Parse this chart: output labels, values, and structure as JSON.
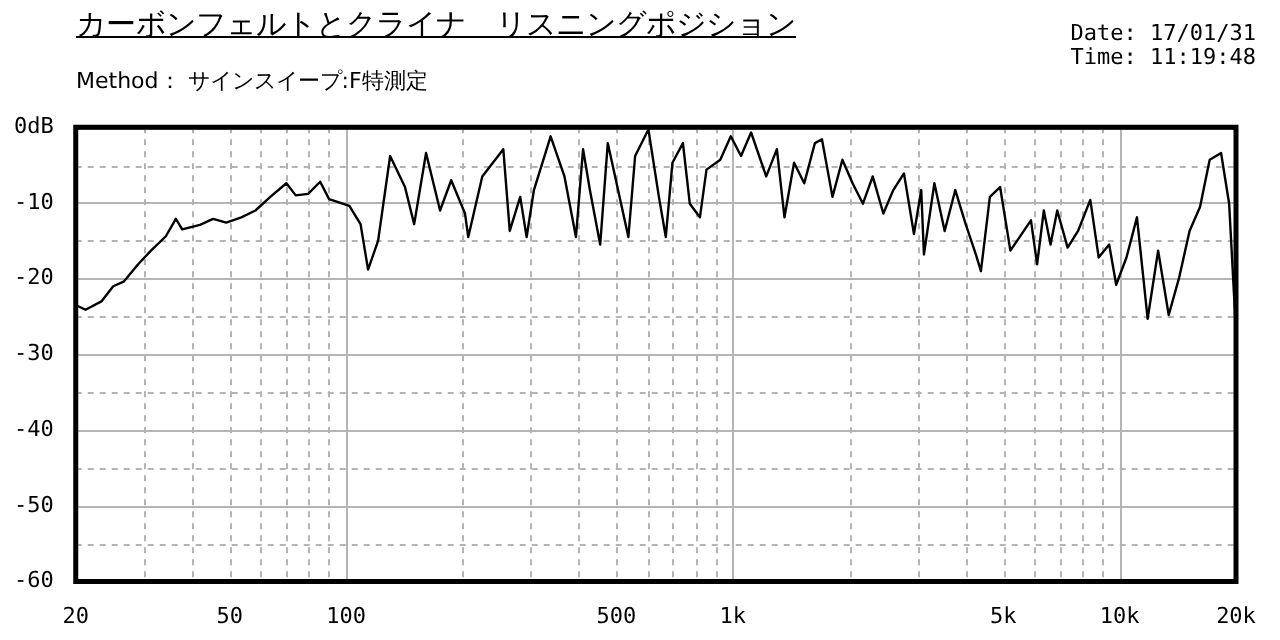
{
  "chart_data": {
    "type": "line",
    "title": "カーボンフェルトとクライナ　リスニングポジション",
    "subtitle": "Method： サインスイープ:F特測定",
    "annotations": [
      "Date: 17/01/31",
      "Time: 11:19:48"
    ],
    "log": "x",
    "grid": true,
    "legend": false,
    "marker": "none",
    "line_style": "solid",
    "xlim": [
      20,
      20000
    ],
    "xticks": [
      20,
      {
        "value": 30,
        "label": null
      },
      {
        "value": 40,
        "label": null
      },
      50,
      {
        "value": 60,
        "label": null
      },
      {
        "value": 70,
        "label": null
      },
      {
        "value": 80,
        "label": null
      },
      {
        "value": 90,
        "label": null
      },
      100,
      {
        "value": 200,
        "label": null
      },
      {
        "value": 300,
        "label": null
      },
      {
        "value": 400,
        "label": null
      },
      500,
      {
        "value": 600,
        "label": null
      },
      {
        "value": 700,
        "label": null
      },
      {
        "value": 800,
        "label": null
      },
      {
        "value": 900,
        "label": null
      },
      {
        "value": 1000,
        "label": "1k"
      },
      {
        "value": 2000,
        "label": null
      },
      {
        "value": 3000,
        "label": null
      },
      {
        "value": 4000,
        "label": null
      },
      {
        "value": 5000,
        "label": "5k"
      },
      {
        "value": 6000,
        "label": null
      },
      {
        "value": 7000,
        "label": null
      },
      {
        "value": 8000,
        "label": null
      },
      {
        "value": 9000,
        "label": null
      },
      {
        "value": 10000,
        "label": "10k"
      },
      {
        "value": 20000,
        "label": "20k"
      }
    ],
    "ylim": [
      -60,
      0
    ],
    "yticks": [
      {
        "value": -60,
        "label": "-60"
      },
      {
        "value": -55,
        "label": null
      },
      -50,
      {
        "value": -45,
        "label": null
      },
      -40,
      {
        "value": -35,
        "label": null
      },
      -30,
      {
        "value": -25,
        "label": null
      },
      -20,
      {
        "value": -15,
        "label": null
      },
      -10,
      {
        "value": -5,
        "label": null
      },
      {
        "value": 0,
        "label": "0dB"
      }
    ],
    "series": [
      {
        "color": "#000000",
        "x": [
          20,
          21.2,
          23.3,
          25,
          26.6,
          29,
          31.3,
          34.2,
          36.3,
          37.7,
          41.9,
          45.3,
          49,
          53.6,
          58.3,
          63.7,
          70.1,
          74.1,
          79.8,
          85.7,
          90.4,
          102,
          109,
          114,
          121,
          130,
          142,
          150,
          161,
          175,
          187,
          203,
          207,
          225,
          255,
          265,
          282,
          293,
          306,
          338,
          367,
          393,
          410,
          427,
          454,
          475,
          505,
          537,
          559,
          605,
          644,
          671,
          698,
          743,
          774,
          822,
          855,
          928,
          988,
          1050,
          1115,
          1220,
          1300,
          1360,
          1440,
          1530,
          1630,
          1700,
          1810,
          1920,
          2040,
          2170,
          2300,
          2450,
          2600,
          2770,
          2940,
          3070,
          3120,
          3320,
          3530,
          3760,
          4000,
          4250,
          4380,
          4620,
          4910,
          5220,
          5900,
          6120,
          6370,
          6630,
          6900,
          7340,
          7810,
          8400,
          8830,
          9400,
          9800,
          10420,
          11090,
          11820,
          12580,
          13400,
          14250,
          15170,
          16150,
          17100,
          18300,
          19200,
          19960,
          20000
        ],
        "values": [
          -23.5,
          -24.1,
          -23,
          -21,
          -20.4,
          -18.1,
          -16.3,
          -14.4,
          -12.1,
          -13.5,
          -12.9,
          -12.1,
          -12.6,
          -11.9,
          -11,
          -9.2,
          -7.4,
          -9,
          -8.8,
          -7.2,
          -9.5,
          -10.4,
          -12.8,
          -18.8,
          -15,
          -3.8,
          -7.9,
          -12.8,
          -3.4,
          -11,
          -7,
          -11.4,
          -14.5,
          -6.5,
          -2.9,
          -13.7,
          -9.2,
          -14.5,
          -8.3,
          -1.2,
          -6.5,
          -14.5,
          -2.9,
          -8.3,
          -15.5,
          -2.1,
          -8.3,
          -14.5,
          -3.8,
          -0.3,
          -9.2,
          -14.5,
          -4.7,
          -2.1,
          -10.1,
          -11.9,
          -5.6,
          -4.3,
          -1.2,
          -3.8,
          -0.7,
          -6.5,
          -2.9,
          -11.9,
          -4.7,
          -7.4,
          -2.1,
          -1.6,
          -9.2,
          -4.3,
          -7.4,
          -10.1,
          -6.5,
          -11.4,
          -8.3,
          -6.1,
          -14.1,
          -8.3,
          -16.8,
          -7.4,
          -13.7,
          -8.3,
          -12.8,
          -16.8,
          -19,
          -9.2,
          -7.9,
          -16.3,
          -12.3,
          -18.1,
          -11,
          -15.5,
          -11,
          -15.9,
          -13.7,
          -9.6,
          -17.2,
          -15.5,
          -20.8,
          -17.2,
          -11.9,
          -25.3,
          -16.3,
          -24.8,
          -19.9,
          -13.7,
          -10.5,
          -4.3,
          -3.4,
          -10.1,
          -26.2,
          -41.3
        ]
      }
    ]
  }
}
